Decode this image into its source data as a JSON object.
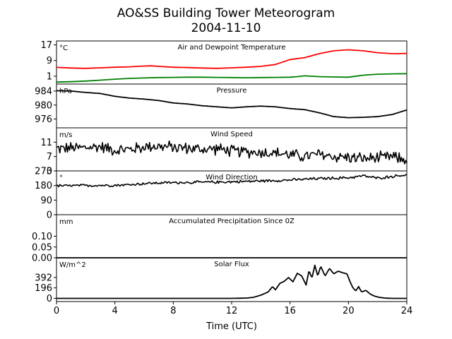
{
  "chart_data": {
    "type": "line",
    "title": "AO&SS Building Tower Meteorogram",
    "subtitle": "2004-11-10",
    "xlabel": "Time (UTC)",
    "x_ticks": [
      0,
      4,
      8,
      12,
      16,
      20,
      24
    ],
    "xlim": [
      0,
      24
    ],
    "panels": [
      {
        "title": "Air and Dewpoint Temperature",
        "unit": "°C",
        "ylim": [
          -3,
          19
        ],
        "yticks": [
          17,
          9,
          1
        ],
        "series": [
          {
            "color": "#ff0000",
            "kind": "smooth",
            "points": [
              [
                0,
                5.5
              ],
              [
                1,
                5.2
              ],
              [
                2,
                5.0
              ],
              [
                3,
                5.3
              ],
              [
                4,
                5.6
              ],
              [
                5,
                5.8
              ],
              [
                6,
                6.2
              ],
              [
                6.5,
                6.3
              ],
              [
                7,
                6.0
              ],
              [
                8,
                5.6
              ],
              [
                9,
                5.4
              ],
              [
                10,
                5.2
              ],
              [
                11,
                5.0
              ],
              [
                12,
                5.3
              ],
              [
                13,
                5.6
              ],
              [
                14,
                6.0
              ],
              [
                15,
                7.0
              ],
              [
                16,
                9.5
              ],
              [
                17,
                10.5
              ],
              [
                18,
                12.5
              ],
              [
                19,
                14.0
              ],
              [
                20,
                14.5
              ],
              [
                21,
                14.0
              ],
              [
                22,
                13.0
              ],
              [
                23,
                12.5
              ],
              [
                24,
                12.6
              ]
            ]
          },
          {
            "color": "#008000",
            "kind": "smooth",
            "points": [
              [
                0,
                -2.0
              ],
              [
                1,
                -1.8
              ],
              [
                2,
                -1.5
              ],
              [
                3,
                -1.0
              ],
              [
                4,
                -0.5
              ],
              [
                5,
                -0.1
              ],
              [
                6,
                0.1
              ],
              [
                7,
                0.3
              ],
              [
                8,
                0.4
              ],
              [
                9,
                0.5
              ],
              [
                10,
                0.5
              ],
              [
                11,
                0.4
              ],
              [
                12,
                0.3
              ],
              [
                13,
                0.2
              ],
              [
                14,
                0.3
              ],
              [
                15,
                0.4
              ],
              [
                16,
                0.5
              ],
              [
                16.5,
                0.8
              ],
              [
                17,
                1.2
              ],
              [
                18,
                0.8
              ],
              [
                19,
                0.6
              ],
              [
                20,
                0.5
              ],
              [
                21,
                1.5
              ],
              [
                22,
                2.0
              ],
              [
                23,
                2.2
              ],
              [
                24,
                2.3
              ]
            ]
          }
        ]
      },
      {
        "title": "Pressure",
        "unit": "hPa",
        "ylim": [
          973.5,
          986
        ],
        "yticks": [
          984,
          980,
          976
        ],
        "series": [
          {
            "color": "#000000",
            "kind": "rough",
            "points": [
              [
                0,
                984.1
              ],
              [
                1,
                984.0
              ],
              [
                2,
                983.6
              ],
              [
                3,
                983.3
              ],
              [
                4,
                982.5
              ],
              [
                5,
                982.0
              ],
              [
                6,
                981.7
              ],
              [
                7,
                981.3
              ],
              [
                8,
                980.6
              ],
              [
                9,
                980.3
              ],
              [
                10,
                979.8
              ],
              [
                11,
                979.5
              ],
              [
                12,
                979.2
              ],
              [
                13,
                979.5
              ],
              [
                14,
                979.7
              ],
              [
                15,
                979.5
              ],
              [
                16,
                979.0
              ],
              [
                17,
                978.7
              ],
              [
                18,
                977.8
              ],
              [
                19,
                976.7
              ],
              [
                20,
                976.4
              ],
              [
                21,
                976.5
              ],
              [
                22,
                976.7
              ],
              [
                23,
                977.3
              ],
              [
                24,
                978.6
              ]
            ]
          }
        ]
      },
      {
        "title": "Wind Speed",
        "unit": "m/s",
        "ylim": [
          3,
          15
        ],
        "yticks": [
          11,
          7,
          3
        ],
        "series": [
          {
            "color": "#000000",
            "kind": "noisy",
            "amp": 2.0,
            "points": [
              [
                0,
                9.2
              ],
              [
                2,
                9.5
              ],
              [
                3,
                9.8
              ],
              [
                4,
                8.8
              ],
              [
                5,
                9.0
              ],
              [
                6,
                9.6
              ],
              [
                6.5,
                10.0
              ],
              [
                7,
                9.8
              ],
              [
                8,
                9.6
              ],
              [
                9,
                9.3
              ],
              [
                10,
                9.0
              ],
              [
                11,
                9.2
              ],
              [
                12,
                8.5
              ],
              [
                13,
                8.3
              ],
              [
                14,
                8.2
              ],
              [
                15,
                8.0
              ],
              [
                16,
                7.5
              ],
              [
                17,
                7.0
              ],
              [
                18,
                7.6
              ],
              [
                19,
                7.0
              ],
              [
                20,
                6.8
              ],
              [
                21,
                6.4
              ],
              [
                22,
                6.6
              ],
              [
                23,
                6.9
              ],
              [
                24,
                6.0
              ]
            ]
          }
        ]
      },
      {
        "title": "Wind Direction",
        "unit": "°",
        "ylim": [
          0,
          270
        ],
        "yticks": [
          270,
          180,
          90,
          0
        ],
        "series": [
          {
            "color": "#000000",
            "kind": "noisy",
            "amp": 10,
            "points": [
              [
                0,
                178
              ],
              [
                2,
                180
              ],
              [
                4,
                182
              ],
              [
                5,
                185
              ],
              [
                6,
                192
              ],
              [
                7,
                196
              ],
              [
                8,
                198
              ],
              [
                10,
                200
              ],
              [
                12,
                203
              ],
              [
                14,
                208
              ],
              [
                16,
                214
              ],
              [
                18,
                223
              ],
              [
                19,
                225
              ],
              [
                20,
                228
              ],
              [
                21,
                240
              ],
              [
                22,
                225
              ],
              [
                23,
                236
              ],
              [
                24,
                246
              ]
            ]
          }
        ]
      },
      {
        "title": "Accumulated Precipitation Since 0Z",
        "unit": "mm",
        "ylim": [
          0,
          0.2
        ],
        "yticks": [
          0.1,
          0.05,
          0.0
        ],
        "ytick_labels": [
          "0.10",
          "0.05",
          "0.00"
        ],
        "series": [
          {
            "color": "#000000",
            "kind": "smooth",
            "points": [
              [
                0,
                0
              ],
              [
                24,
                0
              ]
            ]
          }
        ]
      },
      {
        "title": "Solar Flux",
        "unit": "W/m^2",
        "ylim": [
          -60,
          760
        ],
        "yticks": [
          392,
          196,
          0
        ],
        "series": [
          {
            "color": "#000000",
            "kind": "rough",
            "points": [
              [
                0,
                0
              ],
              [
                12,
                0
              ],
              [
                13,
                5
              ],
              [
                13.5,
                20
              ],
              [
                14,
                60
              ],
              [
                14.5,
                120
              ],
              [
                14.8,
                220
              ],
              [
                15,
                160
              ],
              [
                15.3,
                280
              ],
              [
                15.6,
                320
              ],
              [
                15.9,
                390
              ],
              [
                16.2,
                310
              ],
              [
                16.5,
                470
              ],
              [
                16.8,
                420
              ],
              [
                17.1,
                250
              ],
              [
                17.3,
                520
              ],
              [
                17.5,
                380
              ],
              [
                17.7,
                620
              ],
              [
                17.9,
                420
              ],
              [
                18.1,
                600
              ],
              [
                18.4,
                420
              ],
              [
                18.7,
                560
              ],
              [
                19,
                460
              ],
              [
                19.3,
                510
              ],
              [
                19.6,
                480
              ],
              [
                19.9,
                460
              ],
              [
                20.1,
                320
              ],
              [
                20.3,
                200
              ],
              [
                20.5,
                140
              ],
              [
                20.7,
                220
              ],
              [
                20.9,
                120
              ],
              [
                21.2,
                150
              ],
              [
                21.5,
                80
              ],
              [
                21.8,
                40
              ],
              [
                22.1,
                20
              ],
              [
                22.5,
                5
              ],
              [
                23,
                0
              ],
              [
                24,
                0
              ]
            ]
          }
        ]
      }
    ]
  }
}
